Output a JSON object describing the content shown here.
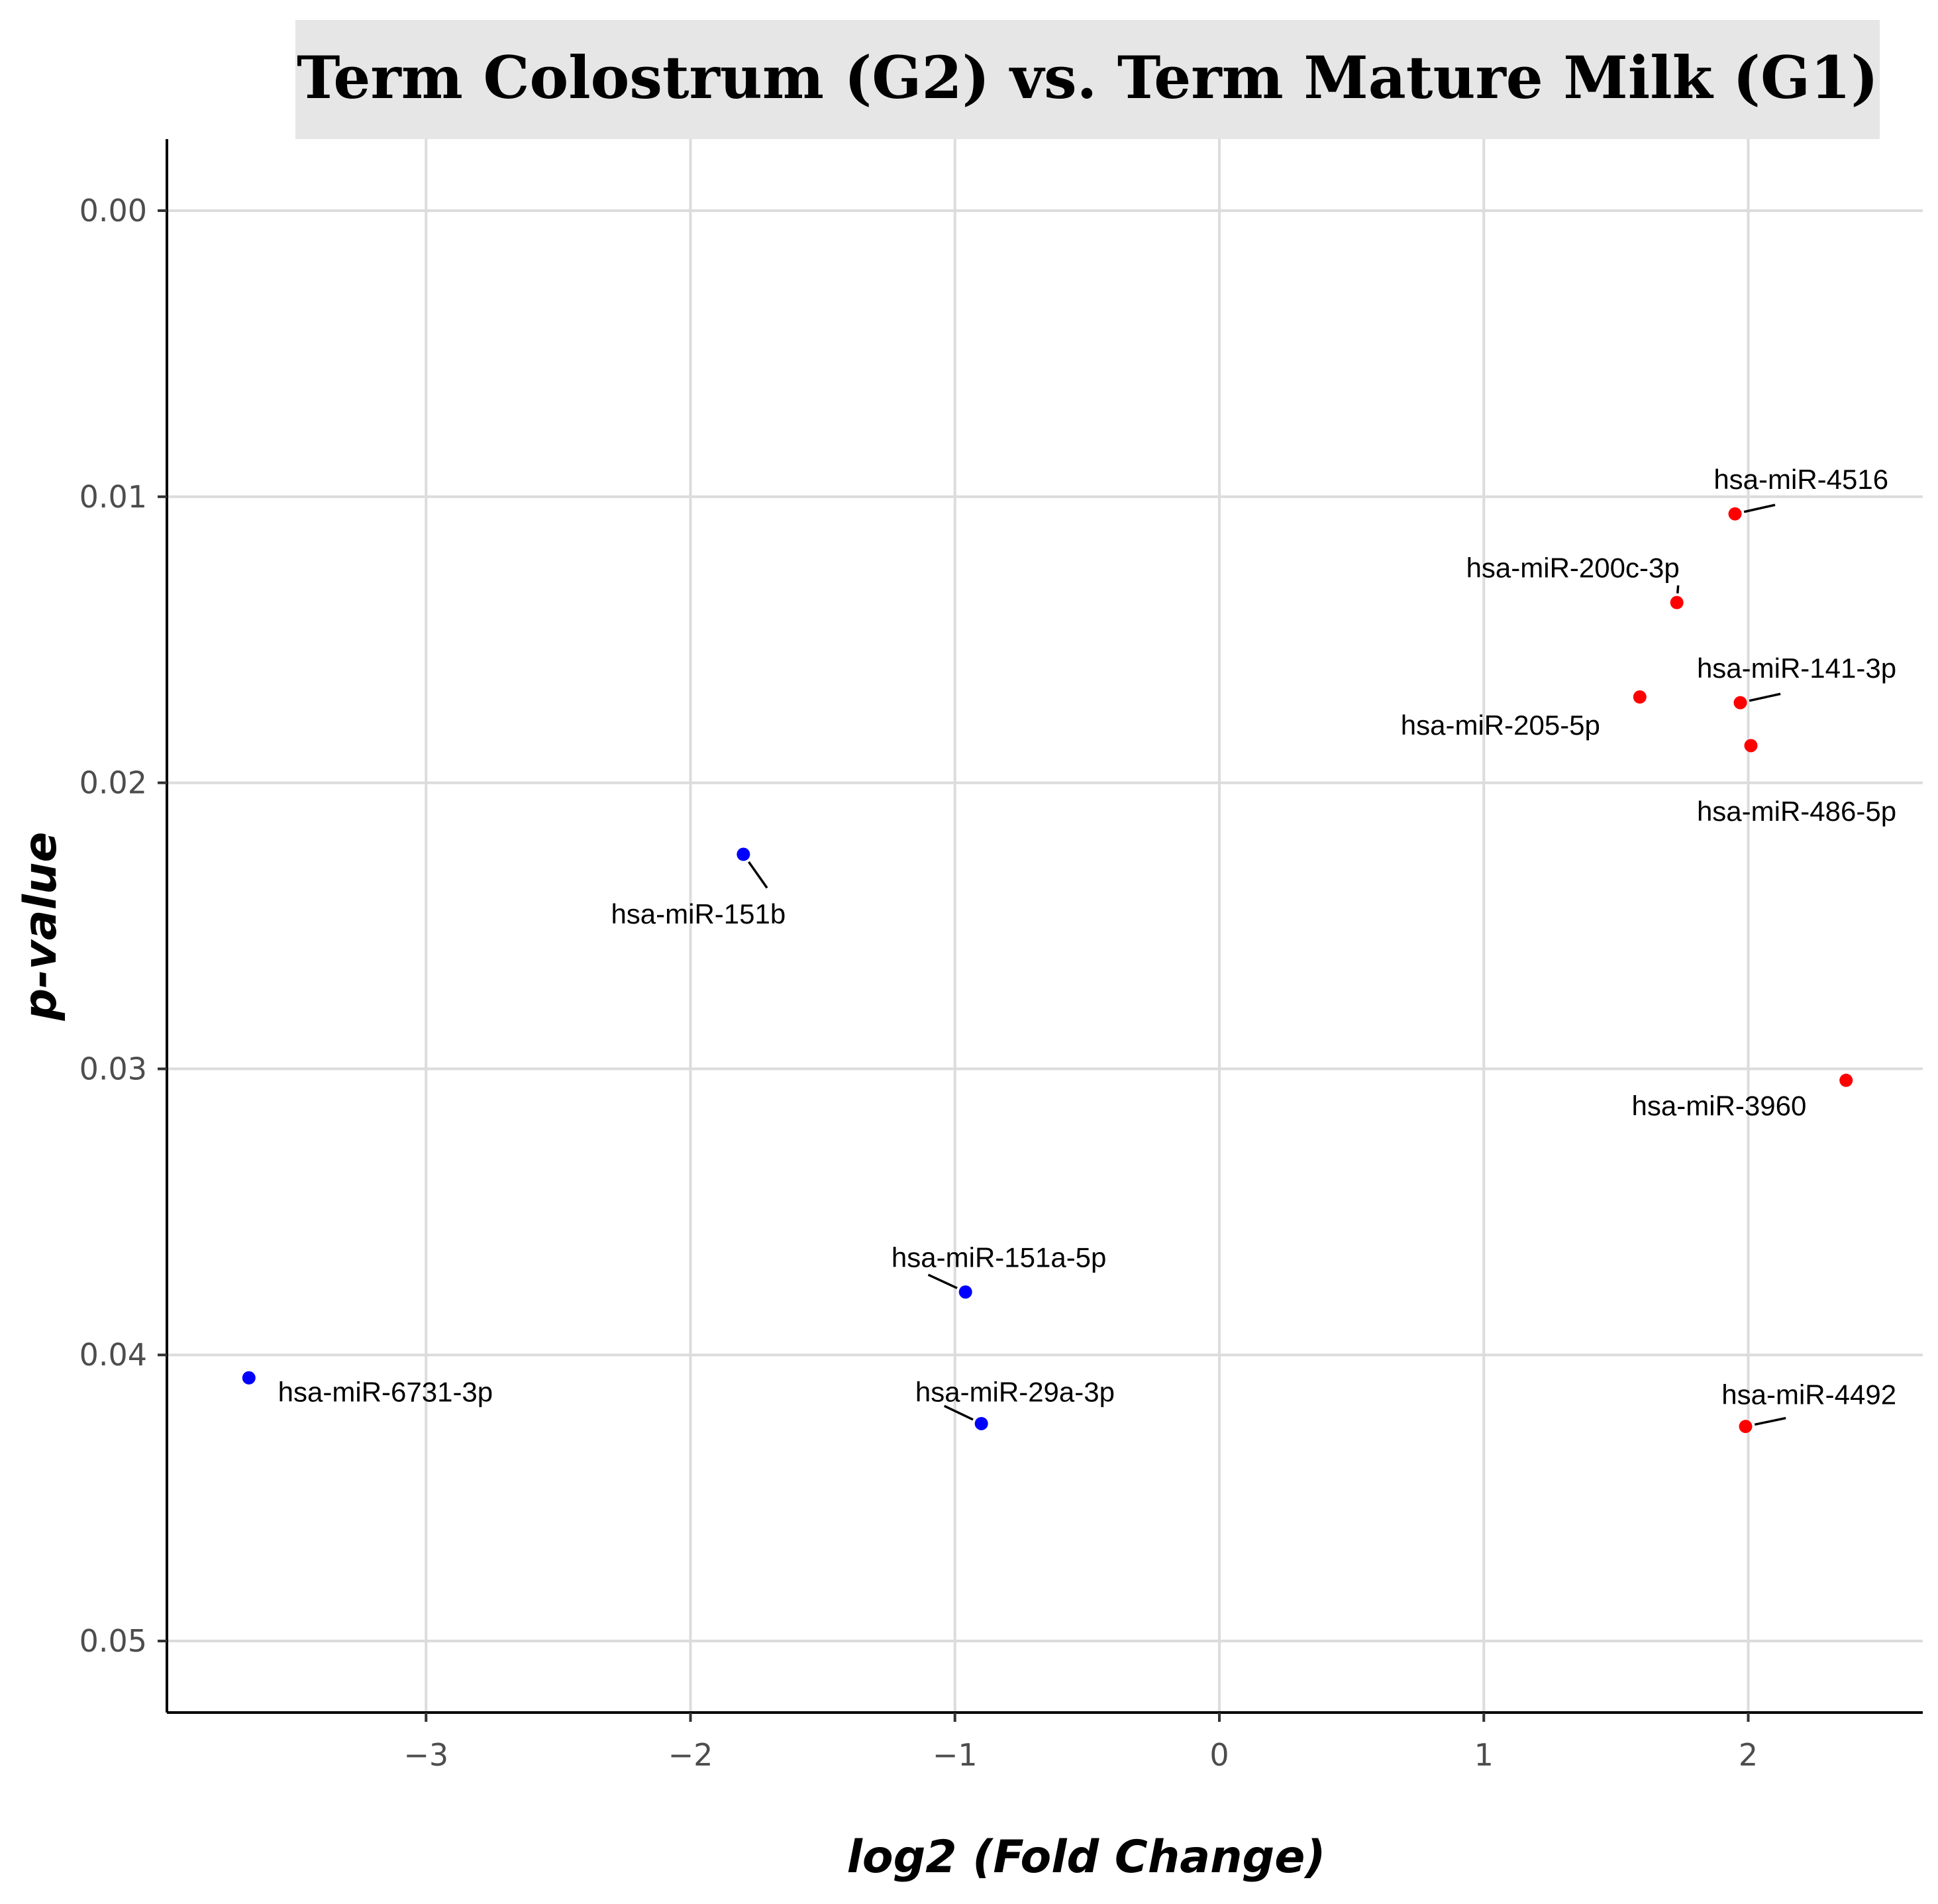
{
  "chart_data": {
    "type": "scatter",
    "title": "Term Colostrum (G2) vs. Term Mature Milk (G1)",
    "xlabel": "log2 (Fold Change)",
    "ylabel": "p-value",
    "xlim": [
      -3.98,
      2.66
    ],
    "ylim": [
      0.0525,
      -0.0025
    ],
    "y_reversed": true,
    "grid": true,
    "x_ticks": [
      {
        "value": -3,
        "label": "−3"
      },
      {
        "value": -2,
        "label": "−2"
      },
      {
        "value": -1,
        "label": "−1"
      },
      {
        "value": 0,
        "label": "0"
      },
      {
        "value": 1,
        "label": "1"
      },
      {
        "value": 2,
        "label": "2"
      }
    ],
    "y_ticks": [
      {
        "value": 0.0,
        "label": "0.00"
      },
      {
        "value": 0.01,
        "label": "0.01"
      },
      {
        "value": 0.02,
        "label": "0.02"
      },
      {
        "value": 0.03,
        "label": "0.03"
      },
      {
        "value": 0.04,
        "label": "0.04"
      },
      {
        "value": 0.05,
        "label": "0.05"
      }
    ],
    "colors": {
      "up": "#ff0000",
      "down": "#0000ff"
    },
    "points": [
      {
        "label": "hsa-miR-4516",
        "x": 1.95,
        "y": 0.0106,
        "group": "up",
        "anchor": "end",
        "lx": 2.53,
        "ly": 0.0094,
        "leader": true
      },
      {
        "label": "hsa-miR-200c-3p",
        "x": 1.73,
        "y": 0.0137,
        "group": "up",
        "anchor": "end",
        "lx": 1.74,
        "ly": 0.0125,
        "leader": true
      },
      {
        "label": "hsa-miR-141-3p",
        "x": 1.97,
        "y": 0.0172,
        "group": "up",
        "anchor": "end",
        "lx": 2.56,
        "ly": 0.016,
        "leader": true
      },
      {
        "label": "hsa-miR-205-5p",
        "x": 1.59,
        "y": 0.017,
        "group": "up",
        "anchor": "end",
        "lx": 1.44,
        "ly": 0.018,
        "leader": false
      },
      {
        "label": "hsa-miR-486-5p",
        "x": 2.01,
        "y": 0.0187,
        "group": "up",
        "anchor": "end",
        "lx": 2.56,
        "ly": 0.021,
        "leader": false
      },
      {
        "label": "hsa-miR-3960",
        "x": 2.37,
        "y": 0.0304,
        "group": "up",
        "anchor": "end",
        "lx": 2.22,
        "ly": 0.0313,
        "leader": false
      },
      {
        "label": "hsa-miR-4492",
        "x": 1.99,
        "y": 0.0425,
        "group": "up",
        "anchor": "end",
        "lx": 2.56,
        "ly": 0.0414,
        "leader": true
      },
      {
        "label": "hsa-miR-151b",
        "x": -1.8,
        "y": 0.0225,
        "group": "down",
        "anchor": "end",
        "lx": -1.64,
        "ly": 0.0246,
        "leader": true
      },
      {
        "label": "hsa-miR-151a-5p",
        "x": -0.96,
        "y": 0.0378,
        "group": "down",
        "anchor": "start",
        "lx": -1.24,
        "ly": 0.0366,
        "leader": true
      },
      {
        "label": "hsa-miR-29a-3p",
        "x": -0.9,
        "y": 0.0424,
        "group": "down",
        "anchor": "start",
        "lx": -1.15,
        "ly": 0.0413,
        "leader": true
      },
      {
        "label": "hsa-miR-6731-3p",
        "x": -3.67,
        "y": 0.0408,
        "group": "down",
        "anchor": "start",
        "lx": -3.56,
        "ly": 0.0413,
        "leader": false
      }
    ]
  }
}
